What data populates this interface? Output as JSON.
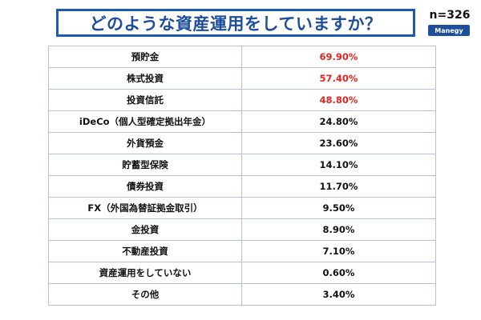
{
  "header": {
    "title": "どのような資産運用をしていますか？",
    "sample_size": "n=326",
    "brand": "Manegy"
  },
  "colors": {
    "title_blue": "#1f4e9c",
    "highlight_red": "#e8231f",
    "border": "#b9bfe0"
  },
  "chart_data": {
    "type": "table",
    "title": "どのような資産運用をしていますか？",
    "rows": [
      {
        "label": "預貯金",
        "value": "69.90%",
        "highlight": true
      },
      {
        "label": "株式投資",
        "value": "57.40%",
        "highlight": true
      },
      {
        "label": "投資信託",
        "value": "48.80%",
        "highlight": true
      },
      {
        "label": "iDeCo（個人型確定拠出年金）",
        "value": "24.80%",
        "highlight": false
      },
      {
        "label": "外貨預金",
        "value": "23.60%",
        "highlight": false
      },
      {
        "label": "貯蓄型保険",
        "value": "14.10%",
        "highlight": false
      },
      {
        "label": "債券投資",
        "value": "11.70%",
        "highlight": false
      },
      {
        "label": "FX（外国為替証拠金取引）",
        "value": "9.50%",
        "highlight": false
      },
      {
        "label": "金投資",
        "value": "8.90%",
        "highlight": false
      },
      {
        "label": "不動産投資",
        "value": "7.10%",
        "highlight": false
      },
      {
        "label": "資産運用をしていない",
        "value": "0.60%",
        "highlight": false
      },
      {
        "label": "その他",
        "value": "3.40%",
        "highlight": false
      }
    ]
  }
}
